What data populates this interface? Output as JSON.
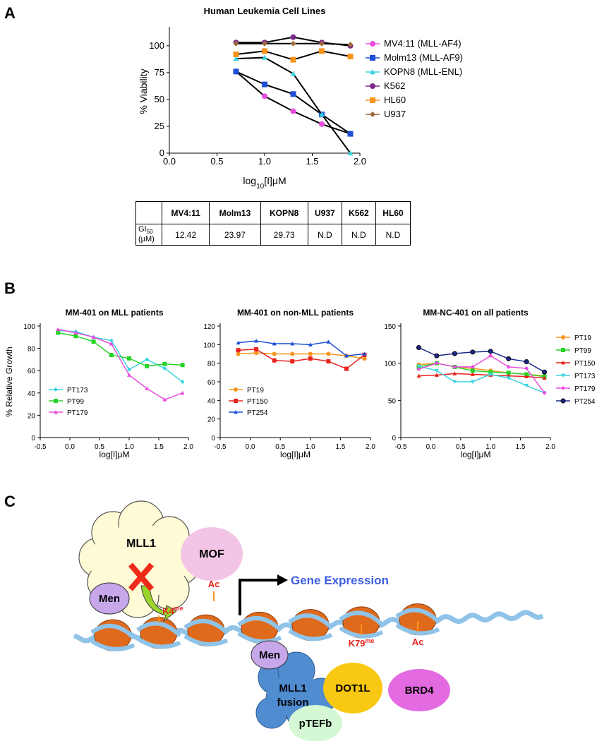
{
  "panel_labels": [
    "A",
    "B",
    "C"
  ],
  "chart_data": [
    {
      "type": "line",
      "title": "Human Leukemia Cell Lines",
      "x_label": [
        "log",
        "10",
        "[I]μM"
      ],
      "y_label": "% Viability",
      "x": [
        0.7,
        1.0,
        1.3,
        1.6,
        1.9
      ],
      "xlim": [
        0,
        2
      ],
      "xticks": [
        {
          "value": 0,
          "label": "0.0"
        },
        {
          "value": 0.5,
          "label": "0.5"
        },
        {
          "value": 1,
          "label": "1.0"
        },
        {
          "value": 1.5,
          "label": "1.5"
        },
        {
          "value": 2,
          "label": "2.0"
        }
      ],
      "ylim": [
        0,
        115
      ],
      "yticks": [
        0,
        25,
        50,
        75,
        100
      ],
      "legend": "right",
      "fit_color": "#000000",
      "series": [
        {
          "name": "MV4:11 (MLL-AF4)",
          "color": "#e84de0",
          "marker": "circle",
          "values": [
            76,
            53,
            39,
            27,
            18
          ]
        },
        {
          "name": "Molm13 (MLL-AF9)",
          "color": "#1f4fd6",
          "marker": "square",
          "values": [
            76,
            64,
            55,
            36,
            18
          ]
        },
        {
          "name": "KOPN8 (MLL-ENL)",
          "color": "#3ad4e0",
          "marker": "triangle",
          "values": [
            88,
            89,
            74,
            36,
            0
          ]
        },
        {
          "name": "K562",
          "color": "#7b2a8c",
          "marker": "circle",
          "values": [
            103,
            103,
            108,
            103,
            100
          ]
        },
        {
          "name": "HL60",
          "color": "#f7931e",
          "marker": "square",
          "values": [
            92,
            95,
            87,
            95,
            90
          ]
        },
        {
          "name": "U937",
          "color": "#9c6b3a",
          "marker": "diamond",
          "values": [
            102,
            102,
            102,
            102,
            101
          ]
        }
      ]
    },
    {
      "type": "line",
      "title": "MM-401 on MLL patients",
      "x_label": "log[I]μM",
      "y_label": "% Relative Growth",
      "x": [
        -0.2,
        0.1,
        0.4,
        0.7,
        1.0,
        1.3,
        1.6,
        1.9
      ],
      "xlim": [
        -0.5,
        2
      ],
      "xticks": [
        -0.5,
        {
          "value": 0,
          "label": "0.0"
        },
        0.5,
        {
          "value": 1,
          "label": "1.0"
        },
        1.5,
        {
          "value": 2,
          "label": "2.0"
        }
      ],
      "ylim": [
        0,
        100
      ],
      "yticks": [
        0,
        20,
        40,
        60,
        80,
        100
      ],
      "legend": "lower left",
      "series": [
        {
          "name": "PT173",
          "color": "#3ad4e0",
          "marker": "diamond",
          "values": [
            96,
            95,
            90,
            87,
            61,
            70,
            62,
            50
          ]
        },
        {
          "name": "PT99",
          "color": "#27d327",
          "marker": "square",
          "values": [
            94,
            91,
            86,
            74,
            71,
            64,
            66,
            65
          ]
        },
        {
          "name": "PT179",
          "color": "#e84de0",
          "marker": "triangle",
          "values": [
            97,
            94,
            90,
            84,
            56,
            44,
            34,
            40
          ]
        }
      ]
    },
    {
      "type": "line",
      "title": "MM-401 on non-MLL patients",
      "x_label": "log[I]μM",
      "x": [
        -0.2,
        0.1,
        0.4,
        0.7,
        1.0,
        1.3,
        1.6,
        1.9
      ],
      "xlim": [
        -0.5,
        2
      ],
      "xticks": [
        -0.5,
        {
          "value": 0,
          "label": "0.0"
        },
        0.5,
        {
          "value": 1,
          "label": "1.0"
        },
        1.5,
        {
          "value": 2,
          "label": "2.0"
        }
      ],
      "ylim": [
        0,
        120
      ],
      "yticks": [
        0,
        20,
        40,
        60,
        80,
        100,
        120
      ],
      "legend": "lower left",
      "series": [
        {
          "name": "PT19",
          "color": "#f7941d",
          "marker": "circle",
          "values": [
            90,
            91,
            90,
            90,
            90,
            90,
            88,
            85
          ]
        },
        {
          "name": "PT150",
          "color": "#e8231d",
          "marker": "square",
          "values": [
            94,
            95,
            83,
            82,
            85,
            82,
            74,
            89
          ]
        },
        {
          "name": "PT254",
          "color": "#1f4fd6",
          "marker": "triangle",
          "values": [
            102,
            104,
            101,
            101,
            100,
            103,
            88,
            90
          ]
        }
      ]
    },
    {
      "type": "line",
      "title": "MM-NC-401 on all patients",
      "x_label": "log[I]μM",
      "x": [
        -0.2,
        0.1,
        0.4,
        0.7,
        1.0,
        1.3,
        1.6,
        1.9
      ],
      "xlim": [
        -0.5,
        2
      ],
      "xticks": [
        -0.5,
        {
          "value": 0,
          "label": "0.0"
        },
        0.5,
        {
          "value": 1,
          "label": "1.0"
        },
        1.5,
        {
          "value": 2,
          "label": "2.0"
        }
      ],
      "ylim": [
        0,
        150
      ],
      "yticks": [
        0,
        50,
        100,
        150
      ],
      "legend": "right",
      "series": [
        {
          "name": "PT19",
          "color": "#f7941d",
          "marker": "circle",
          "values": [
            98,
            100,
            95,
            93,
            90,
            87,
            85,
            83
          ]
        },
        {
          "name": "PT99",
          "color": "#27d327",
          "marker": "square",
          "values": [
            95,
            100,
            95,
            90,
            88,
            87,
            85,
            82
          ]
        },
        {
          "name": "PT150",
          "color": "#e8231d",
          "marker": "triangle",
          "values": [
            83,
            84,
            86,
            85,
            84,
            83,
            82,
            80
          ]
        },
        {
          "name": "PT173",
          "color": "#3ad4e0",
          "marker": "triangle-down",
          "values": [
            96,
            90,
            75,
            75,
            85,
            80,
            70,
            60
          ]
        },
        {
          "name": "PT179",
          "color": "#e84de0",
          "marker": "diamond",
          "values": [
            92,
            100,
            95,
            95,
            110,
            95,
            93,
            60
          ]
        },
        {
          "name": "PT254",
          "color": "#1b2a8c",
          "marker": "circle",
          "values": [
            121,
            110,
            113,
            115,
            116,
            106,
            102,
            88
          ]
        }
      ]
    }
  ],
  "table": {
    "columns": [
      "MV4:11",
      "Molm13",
      "KOPN8",
      "U937",
      "K562",
      "HL60"
    ],
    "rows": [
      {
        "label": [
          "GI",
          "50",
          "(μM)"
        ],
        "cells": [
          "12.42",
          "23.97",
          "29.73",
          "N.D",
          "N.D",
          "N.D"
        ]
      }
    ]
  },
  "diagram": {
    "mll1": "MLL1",
    "mof": "MOF",
    "men_top": "Men",
    "k4": "K4",
    "k4_sup": "me",
    "ac_top": "Ac",
    "gene_expression": "Gene Expression",
    "men_bottom": "Men",
    "mll1_fusion": [
      "MLL1",
      "fusion"
    ],
    "dot1l": "DOT1L",
    "ptefb": "pTEFb",
    "k79": "K79",
    "k79_sup": "me",
    "ac_bottom": "Ac",
    "brd4": "BRD4"
  }
}
